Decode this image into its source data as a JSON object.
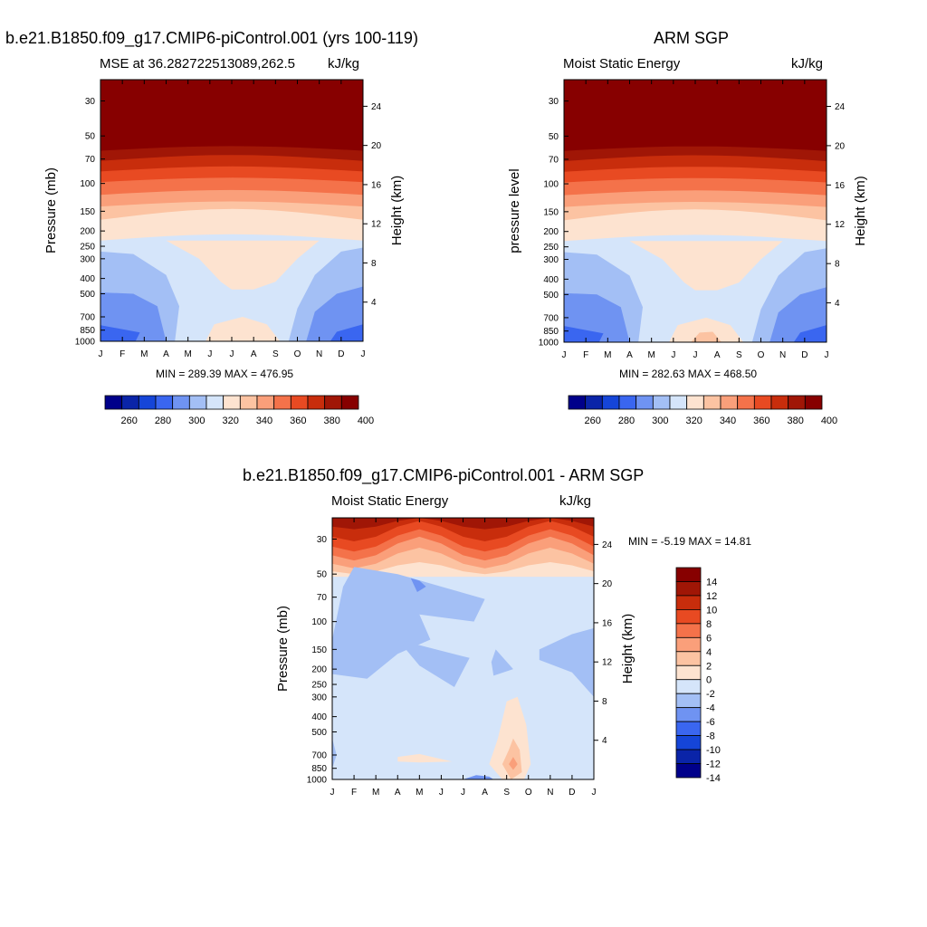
{
  "top_left": {
    "title": "b.e21.B1850.f09_g17.CMIP6-piControl.001 (yrs 100-119)",
    "left_label": "MSE at 36.282722513089,262.5",
    "right_label": "kJ/kg",
    "stats": "MIN = 289.39 MAX = 476.95"
  },
  "top_right": {
    "title": "ARM SGP",
    "left_label": "Moist Static Energy",
    "right_label": "kJ/kg",
    "stats": "MIN = 282.63 MAX = 468.50"
  },
  "bottom": {
    "title": "b.e21.B1850.f09_g17.CMIP6-piControl.001 - ARM SGP",
    "left_label": "Moist Static Energy",
    "right_label": "kJ/kg",
    "stats": "MIN =  -5.19 MAX =  14.81"
  },
  "colors": {
    "mse_scale": [
      "#00008a",
      "#0a24a8",
      "#1545d8",
      "#3a66f0",
      "#6f93f2",
      "#a3bff5",
      "#d5e5fa",
      "#fde3d0",
      "#fcc3a2",
      "#fa9f7a",
      "#f4724a",
      "#e84a22",
      "#c82d0c",
      "#a01606",
      "#870000"
    ],
    "diff_scale": [
      "#00008a",
      "#0a24a8",
      "#1545d8",
      "#3a66f0",
      "#6f93f2",
      "#a3bff5",
      "#d5e5fa",
      "#fde3d0",
      "#fcc3a2",
      "#fa9f7a",
      "#f4724a",
      "#e84a22",
      "#c82d0c",
      "#a01606",
      "#870000"
    ]
  },
  "chart_data": [
    {
      "type": "heatmap",
      "panel": "top_left",
      "ylabel": "Pressure (mb)",
      "y2label": "Height (km)",
      "x_ticks": [
        "J",
        "F",
        "M",
        "A",
        "M",
        "J",
        "J",
        "A",
        "S",
        "O",
        "N",
        "D",
        "J"
      ],
      "y_ticks": [
        30,
        50,
        70,
        100,
        150,
        200,
        250,
        300,
        400,
        500,
        700,
        850,
        1000
      ],
      "y2_ticks": [
        24,
        20,
        16,
        12,
        8,
        4
      ],
      "colorbar_levels": [
        260,
        280,
        300,
        320,
        340,
        360,
        380,
        400
      ],
      "min": 289.39,
      "max": 476.95
    },
    {
      "type": "heatmap",
      "panel": "top_right",
      "ylabel": "pressure level",
      "y2label": "Height (km)",
      "x_ticks": [
        "J",
        "F",
        "M",
        "A",
        "M",
        "J",
        "J",
        "A",
        "S",
        "O",
        "N",
        "D",
        "J"
      ],
      "y_ticks": [
        30,
        50,
        70,
        100,
        150,
        200,
        250,
        300,
        400,
        500,
        700,
        850,
        1000
      ],
      "y2_ticks": [
        24,
        20,
        16,
        12,
        8,
        4
      ],
      "colorbar_levels": [
        260,
        280,
        300,
        320,
        340,
        360,
        380,
        400
      ],
      "min": 282.63,
      "max": 468.5
    },
    {
      "type": "heatmap",
      "panel": "bottom",
      "ylabel": "Pressure (mb)",
      "y2label": "Height (km)",
      "x_ticks": [
        "J",
        "F",
        "M",
        "A",
        "M",
        "J",
        "J",
        "A",
        "S",
        "O",
        "N",
        "D",
        "J"
      ],
      "y_ticks": [
        30,
        50,
        70,
        100,
        150,
        200,
        250,
        300,
        400,
        500,
        700,
        850,
        1000
      ],
      "y2_ticks": [
        24,
        20,
        16,
        12,
        8,
        4
      ],
      "colorbar_levels": [
        14,
        12,
        10,
        8,
        6,
        4,
        2,
        0,
        -2,
        -4,
        -6,
        -8,
        -10,
        -12,
        -14
      ],
      "min": -5.19,
      "max": 14.81
    }
  ]
}
